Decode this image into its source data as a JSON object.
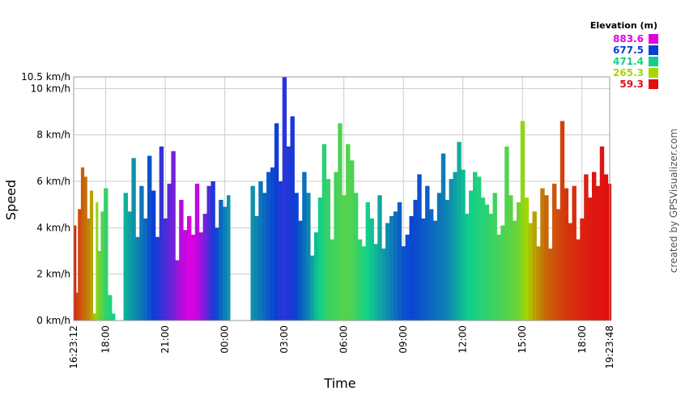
{
  "chart_data": {
    "type": "area",
    "xlabel": "Time",
    "ylabel": "Speed",
    "x_ticks": [
      "16:23:12",
      "18:00",
      "21:00",
      "00:00",
      "03:00",
      "06:00",
      "09:00",
      "12:00",
      "15:00",
      "18:00",
      "19:23:48"
    ],
    "x_tick_hours": [
      16.3867,
      18,
      21,
      24,
      27,
      30,
      33,
      36,
      39,
      42,
      43.3967
    ],
    "xlim_hours": [
      16.3867,
      43.3967
    ],
    "y_ticks": [
      "0 km/h",
      "2 km/h",
      "4 km/h",
      "6 km/h",
      "8 km/h",
      "10 km/h",
      "10.5 km/h"
    ],
    "y_tick_values": [
      0,
      2,
      4,
      6,
      8,
      10,
      10.5
    ],
    "ylim": [
      0,
      10.5
    ],
    "grid": true,
    "legend": {
      "title": "Elevation (m)",
      "position": "top-right",
      "entries": [
        {
          "label": "883.6",
          "color": "#e000e0"
        },
        {
          "label": "677.5",
          "color": "#0a3fd6"
        },
        {
          "label": "471.4",
          "color": "#11d08a"
        },
        {
          "label": "265.3",
          "color": "#a8d600"
        },
        {
          "label": "59.3",
          "color": "#e01010"
        }
      ]
    },
    "series": [
      {
        "x_hours": [
          16.39,
          16.5,
          16.6,
          16.75,
          16.9,
          17.05,
          17.2,
          17.35,
          17.5,
          17.6,
          17.75,
          17.9,
          18.1,
          18.3
        ],
        "speed_kmh": [
          4.1,
          1.2,
          4.8,
          6.6,
          6.2,
          4.4,
          5.6,
          0.3,
          5.1,
          3.0,
          4.7,
          5.7,
          1.1,
          0.3
        ],
        "elevation_m": [
          80,
          110,
          120,
          140,
          160,
          180,
          210,
          240,
          300,
          340,
          380,
          420,
          450,
          470
        ]
      },
      {
        "x_hours": [
          18.9,
          19.1,
          19.3,
          19.5,
          19.7,
          19.9,
          20.1,
          20.3,
          20.5,
          20.7,
          20.9,
          21.1,
          21.3,
          21.5,
          21.7,
          21.9,
          22.1,
          22.3,
          22.5,
          22.7,
          22.9,
          23.1,
          23.3,
          23.5,
          23.7,
          23.9,
          24.1
        ],
        "speed_kmh": [
          5.5,
          4.7,
          7.0,
          3.6,
          5.8,
          4.4,
          7.1,
          5.6,
          3.6,
          7.5,
          4.4,
          5.9,
          7.3,
          2.6,
          5.2,
          3.9,
          4.5,
          3.7,
          5.9,
          3.8,
          4.6,
          5.8,
          6.0,
          4.0,
          5.2,
          4.9,
          5.4
        ],
        "elevation_m": [
          520,
          540,
          560,
          580,
          600,
          620,
          650,
          680,
          700,
          720,
          740,
          760,
          780,
          810,
          840,
          860,
          880,
          870,
          850,
          820,
          780,
          740,
          700,
          660,
          620,
          590,
          560
        ]
      },
      {
        "x_hours": [
          25.3,
          25.5,
          25.7,
          25.9,
          26.1,
          26.3,
          26.5,
          26.7,
          26.9,
          27.1,
          27.3,
          27.5,
          27.7,
          27.9,
          28.1,
          28.3,
          28.5,
          28.7,
          28.9,
          29.1,
          29.3,
          29.5,
          29.7,
          29.9,
          30.1,
          30.3,
          30.5,
          30.7,
          30.9,
          31.1,
          31.3,
          31.5,
          31.7,
          31.9,
          32.1,
          32.3,
          32.5,
          32.7,
          32.9,
          33.1,
          33.3,
          33.5,
          33.7,
          33.9,
          34.1,
          34.3,
          34.5,
          34.7,
          34.9,
          35.1,
          35.3,
          35.5,
          35.7,
          35.9,
          36.1,
          36.3,
          36.5,
          36.7,
          36.9,
          37.1,
          37.3,
          37.5,
          37.7,
          37.9,
          38.1,
          38.3,
          38.5,
          38.7,
          38.9,
          39.1,
          39.3,
          39.5,
          39.7,
          39.9,
          40.1,
          40.3,
          40.5,
          40.7,
          40.9,
          41.1,
          41.3,
          41.5,
          41.7,
          41.9,
          42.1,
          42.3,
          42.5,
          42.7,
          42.9,
          43.1,
          43.3
        ],
        "speed_kmh": [
          5.8,
          4.5,
          6.0,
          5.5,
          6.4,
          6.6,
          8.5,
          6.0,
          10.5,
          7.5,
          8.8,
          5.5,
          4.3,
          6.4,
          5.5,
          2.8,
          3.8,
          5.3,
          7.6,
          6.1,
          3.5,
          6.4,
          8.5,
          5.4,
          7.6,
          6.9,
          5.5,
          3.5,
          3.2,
          5.1,
          4.4,
          3.3,
          5.4,
          3.1,
          4.2,
          4.5,
          4.7,
          5.1,
          3.2,
          3.7,
          4.5,
          5.2,
          6.3,
          4.4,
          5.8,
          4.8,
          4.3,
          5.5,
          7.2,
          5.2,
          6.1,
          6.4,
          7.7,
          6.5,
          4.6,
          5.6,
          6.4,
          6.2,
          5.3,
          5.0,
          4.6,
          5.5,
          3.7,
          4.1,
          7.5,
          5.4,
          4.3,
          5.1,
          8.6,
          5.3,
          4.2,
          4.7,
          3.2,
          5.7,
          5.4,
          3.1,
          5.9,
          4.8,
          8.6,
          5.7,
          4.2,
          5.8,
          3.5,
          4.4,
          6.3,
          5.3,
          6.4,
          5.8,
          7.5,
          6.3,
          5.9
        ],
        "elevation_m": [
          560,
          580,
          600,
          620,
          640,
          660,
          680,
          700,
          710,
          700,
          690,
          670,
          640,
          610,
          580,
          540,
          500,
          470,
          440,
          420,
          410,
          400,
          390,
          380,
          380,
          390,
          410,
          430,
          450,
          470,
          490,
          510,
          530,
          550,
          570,
          590,
          610,
          630,
          650,
          660,
          670,
          660,
          650,
          640,
          630,
          620,
          610,
          600,
          590,
          580,
          560,
          540,
          520,
          500,
          480,
          470,
          460,
          450,
          440,
          430,
          420,
          410,
          400,
          390,
          380,
          370,
          360,
          340,
          300,
          270,
          240,
          210,
          190,
          170,
          150,
          140,
          130,
          120,
          110,
          100,
          95,
          90,
          85,
          80,
          75,
          70,
          66,
          64,
          62,
          60,
          59
        ]
      }
    ],
    "annotations": [
      "created by GPSVisualizer.com"
    ]
  }
}
